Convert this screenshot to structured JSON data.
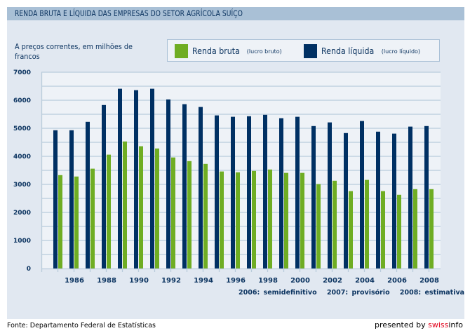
{
  "header": {
    "title": "RENDA BRUTA E LÍQUIDA DAS EMPRESAS DO SETOR AGRÍCOLA SUÍÇO"
  },
  "unit_label": "A preços correntes, em milhões de francos",
  "legend": [
    {
      "label": "Renda bruta",
      "sublabel": "(lucro bruto)",
      "color": "#6fad23"
    },
    {
      "label": "Renda líquida",
      "sublabel": "(lucro líquido)",
      "color": "#003063"
    }
  ],
  "footnotes": [
    "2006: semidefinitivo",
    "2007: provisório",
    "2008: estimativa"
  ],
  "source": "Fonte: Departamento Federal de Estatísticas",
  "branding": {
    "prefix": "presented by ",
    "brand_red": "swiss",
    "brand_black": "info"
  },
  "colors": {
    "panel_bg": "#e1e8f1",
    "plot_bg": "#eef2f7",
    "gridline": "#b9cbdb",
    "text": "#0d3561",
    "title_bar": "#a9c0d6"
  },
  "chart_data": {
    "type": "bar",
    "title": "RENDA BRUTA E LÍQUIDA DAS EMPRESAS DO SETOR AGRÍCOLA SUÍÇO",
    "xlabel": "",
    "ylabel": "A preços correntes, em milhões de francos",
    "ylim": [
      0,
      7000
    ],
    "yticks": [
      0,
      1000,
      2000,
      3000,
      4000,
      5000,
      6000,
      7000
    ],
    "ytick_labels": [
      "0",
      "1000",
      "2000",
      "3000",
      "4000",
      "5000",
      "6000",
      "7000"
    ],
    "grid_step": 500,
    "grid": true,
    "legend_position": "top-right",
    "categories": [
      1985,
      1986,
      1987,
      1988,
      1989,
      1990,
      1991,
      1992,
      1993,
      1994,
      1995,
      1996,
      1997,
      1998,
      1999,
      2000,
      2001,
      2002,
      2003,
      2004,
      2005,
      2006,
      2007,
      2008
    ],
    "xtick_labels": [
      "1986",
      "1988",
      "1990",
      "1992",
      "1994",
      "1996",
      "1998",
      "2000",
      "2002",
      "2004",
      "2006",
      "2008"
    ],
    "series": [
      {
        "name": "Renda líquida (lucro líquido)",
        "color": "#003063",
        "values": [
          4930,
          4930,
          5230,
          5830,
          6410,
          6360,
          6410,
          6030,
          5860,
          5760,
          5460,
          5410,
          5430,
          5480,
          5360,
          5410,
          5080,
          5210,
          4830,
          5260,
          4880,
          4810,
          5060,
          5080
        ]
      },
      {
        "name": "Renda bruta (lucro bruto)",
        "color": "#6fad23",
        "values": [
          3330,
          3280,
          3560,
          4060,
          4530,
          4360,
          4280,
          3960,
          3830,
          3730,
          3460,
          3430,
          3480,
          3530,
          3410,
          3410,
          3010,
          3130,
          2760,
          3160,
          2760,
          2630,
          2830,
          2830
        ]
      }
    ]
  }
}
